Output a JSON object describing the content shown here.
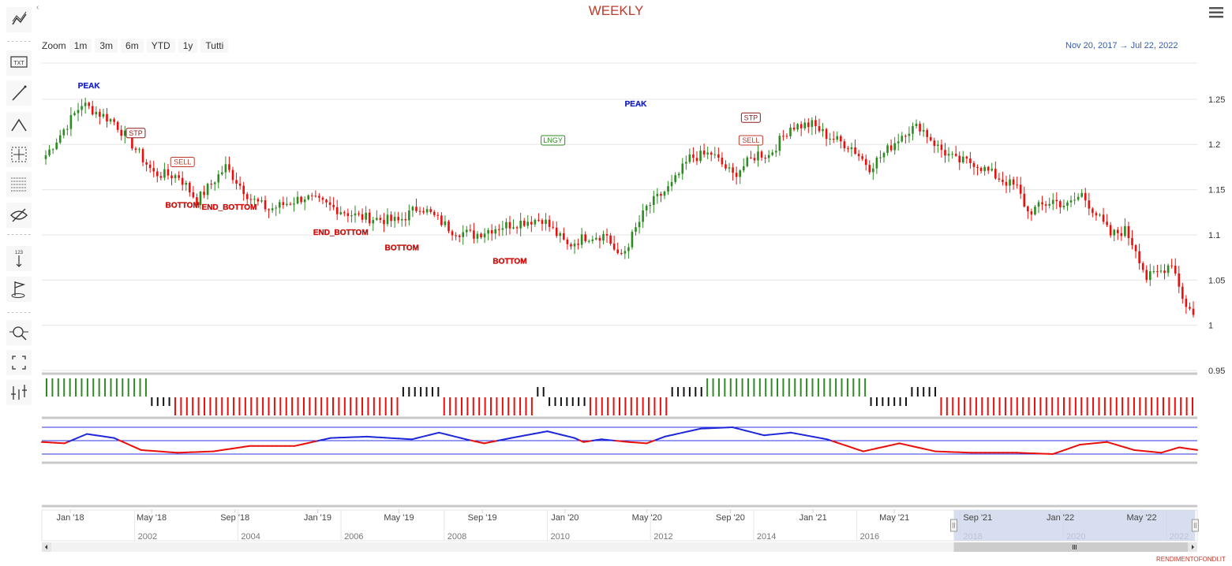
{
  "title": "WEEKLY",
  "zoom": {
    "label": "Zoom",
    "buttons": [
      "1m",
      "3m",
      "6m",
      "YTD",
      "1y",
      "Tutti"
    ]
  },
  "range": {
    "from": "Nov 20, 2017",
    "arrow": "→",
    "to": "Jul 22, 2022"
  },
  "toolbar": {
    "tools": [
      "line-series-icon",
      "text-annotation-icon",
      "segment-icon",
      "elliott-wave-icon",
      "measure-icon",
      "fibonacci-icon",
      "hide-icon",
      "vertical-counter-icon",
      "flag-icon",
      "zoom-change-icon",
      "fullscreen-icon",
      "indicators-icon"
    ]
  },
  "credit": "RENDIMENTOFONDI.IT",
  "colors": {
    "up": "#2e8b22",
    "down": "#e8100c",
    "title": "#c0392b",
    "navigator": "#ccd6eb",
    "osc_blue": "#1f28d8",
    "osc_red": "#e8100c"
  },
  "chart_data": {
    "type": "candlestick",
    "x_start": "2017-11-20",
    "x_end": "2022-07-22",
    "y_ticks": [
      0.95,
      1,
      1.05,
      1.1,
      1.15,
      1.2,
      1.25
    ],
    "ylim": [
      0.95,
      1.29
    ],
    "x_ticks": [
      "Jan '18",
      "May '18",
      "Sep '18",
      "Jan '19",
      "May '19",
      "Sep '19",
      "Jan '20",
      "May '20",
      "Sep '20",
      "Jan '21",
      "May '21",
      "Sep '21",
      "Jan '22",
      "May '22"
    ],
    "anchors": [
      [
        0,
        1.188
      ],
      [
        10,
        1.245
      ],
      [
        19,
        1.225
      ],
      [
        24,
        1.2
      ],
      [
        30,
        1.168
      ],
      [
        37,
        1.165
      ],
      [
        42,
        1.138
      ],
      [
        50,
        1.175
      ],
      [
        57,
        1.14
      ],
      [
        62,
        1.128
      ],
      [
        72,
        1.142
      ],
      [
        80,
        1.13
      ],
      [
        87,
        1.12
      ],
      [
        98,
        1.115
      ],
      [
        104,
        1.132
      ],
      [
        113,
        1.105
      ],
      [
        119,
        1.1
      ],
      [
        125,
        1.108
      ],
      [
        133,
        1.115
      ],
      [
        138,
        1.118
      ],
      [
        145,
        1.088
      ],
      [
        150,
        1.098
      ],
      [
        156,
        1.1
      ],
      [
        159,
        1.075
      ],
      [
        161,
        1.083
      ],
      [
        167,
        1.13
      ],
      [
        174,
        1.155
      ],
      [
        179,
        1.185
      ],
      [
        185,
        1.19
      ],
      [
        191,
        1.166
      ],
      [
        198,
        1.19
      ],
      [
        201,
        1.188
      ],
      [
        207,
        1.22
      ],
      [
        213,
        1.222
      ],
      [
        217,
        1.21
      ],
      [
        224,
        1.197
      ],
      [
        229,
        1.175
      ],
      [
        233,
        1.19
      ],
      [
        239,
        1.215
      ],
      [
        243,
        1.22
      ],
      [
        248,
        1.197
      ],
      [
        253,
        1.182
      ],
      [
        258,
        1.18
      ],
      [
        264,
        1.165
      ],
      [
        270,
        1.152
      ],
      [
        273,
        1.125
      ],
      [
        280,
        1.138
      ],
      [
        284,
        1.132
      ],
      [
        288,
        1.145
      ],
      [
        292,
        1.123
      ],
      [
        296,
        1.1
      ],
      [
        300,
        1.105
      ],
      [
        303,
        1.085
      ],
      [
        306,
        1.052
      ],
      [
        310,
        1.06
      ],
      [
        313,
        1.07
      ],
      [
        315,
        1.045
      ],
      [
        317,
        1.02
      ],
      [
        319,
        1.015
      ]
    ],
    "annotations": [
      {
        "text": "PEAK",
        "type": "peak",
        "i": 12,
        "price": 1.262
      },
      {
        "text": "STP",
        "type": "stp",
        "i": 25,
        "price": 1.21
      },
      {
        "text": "SELL",
        "type": "sell",
        "i": 38,
        "price": 1.178
      },
      {
        "text": "BOTTOM",
        "type": "bottom",
        "i": 38,
        "price": 1.13
      },
      {
        "text": "END_BOTTOM",
        "type": "bottom",
        "i": 51,
        "price": 1.128
      },
      {
        "text": "END_BOTTOM",
        "type": "bottom",
        "i": 82,
        "price": 1.1
      },
      {
        "text": "BOTTOM",
        "type": "bottom",
        "i": 99,
        "price": 1.083
      },
      {
        "text": "BOTTOM",
        "type": "bottom",
        "i": 129,
        "price": 1.068
      },
      {
        "text": "LNGY",
        "type": "long",
        "i": 141,
        "price": 1.202
      },
      {
        "text": "PEAK",
        "type": "peak",
        "i": 164,
        "price": 1.242
      },
      {
        "text": "STP",
        "type": "stp",
        "i": 196,
        "price": 1.227
      },
      {
        "text": "SELL",
        "type": "sell",
        "i": 196,
        "price": 1.202
      }
    ],
    "signal_segments": [
      {
        "from": 0,
        "to": 17,
        "state": "long"
      },
      {
        "from": 18,
        "to": 21,
        "state": "neutral-low"
      },
      {
        "from": 22,
        "to": 60,
        "state": "short"
      },
      {
        "from": 61,
        "to": 62,
        "state": "neutral-high"
      },
      {
        "from": 63,
        "to": 67,
        "state": "neutral-high"
      },
      {
        "from": 68,
        "to": 83,
        "state": "short"
      },
      {
        "from": 84,
        "to": 85,
        "state": "neutral-high"
      },
      {
        "from": 86,
        "to": 92,
        "state": "neutral-low"
      },
      {
        "from": 93,
        "to": 106,
        "state": "short"
      },
      {
        "from": 107,
        "to": 112,
        "state": "neutral-high"
      },
      {
        "from": 113,
        "to": 140,
        "state": "long"
      },
      {
        "from": 141,
        "to": 147,
        "state": "neutral-low"
      },
      {
        "from": 148,
        "to": 152,
        "state": "neutral-high"
      },
      {
        "from": 153,
        "to": 196,
        "state": "short"
      }
    ],
    "oscillator": {
      "levels": [
        1,
        0.5,
        0
      ],
      "anchors": [
        [
          0,
          0.45
        ],
        [
          5,
          0.4
        ],
        [
          10,
          0.75
        ],
        [
          16,
          0.6
        ],
        [
          22,
          0.15
        ],
        [
          30,
          0.05
        ],
        [
          38,
          0.1
        ],
        [
          46,
          0.3
        ],
        [
          56,
          0.3
        ],
        [
          64,
          0.6
        ],
        [
          72,
          0.65
        ],
        [
          82,
          0.55
        ],
        [
          88,
          0.8
        ],
        [
          94,
          0.55
        ],
        [
          98,
          0.4
        ],
        [
          104,
          0.6
        ],
        [
          112,
          0.85
        ],
        [
          118,
          0.6
        ],
        [
          120,
          0.45
        ],
        [
          124,
          0.55
        ],
        [
          130,
          0.45
        ],
        [
          134,
          0.4
        ],
        [
          138,
          0.65
        ],
        [
          146,
          0.95
        ],
        [
          153,
          1.0
        ],
        [
          160,
          0.7
        ],
        [
          166,
          0.8
        ],
        [
          174,
          0.55
        ],
        [
          182,
          0.1
        ],
        [
          190,
          0.4
        ],
        [
          198,
          0.1
        ],
        [
          206,
          0.05
        ],
        [
          216,
          0.05
        ],
        [
          224,
          0.0
        ],
        [
          230,
          0.35
        ],
        [
          236,
          0.45
        ],
        [
          242,
          0.15
        ],
        [
          248,
          0.05
        ],
        [
          252,
          0.25
        ],
        [
          256,
          0.15
        ]
      ]
    },
    "navigator_ticks": [
      "2002",
      "2004",
      "2006",
      "2008",
      "2010",
      "2012",
      "2014",
      "2016",
      "2018",
      "2020",
      "2022"
    ]
  }
}
